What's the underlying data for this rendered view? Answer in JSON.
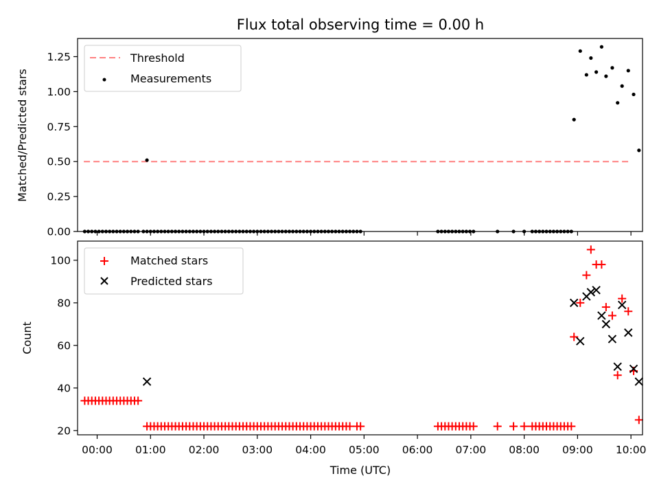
{
  "chart_data": [
    {
      "type": "scatter",
      "title": "Flux total observing time = 0.00 h",
      "xlabel": "",
      "ylabel": "Matched/Predicted stars",
      "ylim": [
        0,
        1.38
      ],
      "yticks": [
        "0.00",
        "0.25",
        "0.50",
        "0.75",
        "1.00",
        "1.25"
      ],
      "ytick_values": [
        0,
        0.25,
        0.5,
        0.75,
        1.0,
        1.25
      ],
      "legend_position": "upper-left",
      "threshold": {
        "name": "Threshold",
        "value": 0.5,
        "x_start": "23:45",
        "x_end": "09:57",
        "color": "#ff7f7f"
      },
      "measurements": {
        "name": "Measurements",
        "color": "#000000",
        "x": [
          "23:46",
          "23:50",
          "23:54",
          "23:58",
          "00:02",
          "00:06",
          "00:10",
          "00:14",
          "00:18",
          "00:22",
          "00:26",
          "00:30",
          "00:34",
          "00:38",
          "00:42",
          "00:46",
          "00:52",
          "00:56",
          "01:00",
          "01:04",
          "01:08",
          "01:12",
          "01:16",
          "01:20",
          "01:24",
          "01:28",
          "01:32",
          "01:36",
          "01:40",
          "01:44",
          "01:48",
          "01:52",
          "01:56",
          "02:00",
          "02:04",
          "02:08",
          "02:12",
          "02:16",
          "02:20",
          "02:24",
          "02:28",
          "02:32",
          "02:36",
          "02:40",
          "02:44",
          "02:48",
          "02:52",
          "02:56",
          "03:00",
          "03:04",
          "03:08",
          "03:12",
          "03:16",
          "03:20",
          "03:24",
          "03:28",
          "03:32",
          "03:36",
          "03:40",
          "03:44",
          "03:48",
          "03:52",
          "03:56",
          "04:00",
          "04:04",
          "04:08",
          "04:12",
          "04:16",
          "04:20",
          "04:24",
          "04:28",
          "04:32",
          "04:36",
          "04:40",
          "04:44",
          "04:48",
          "04:52",
          "04:56",
          "06:23",
          "06:27",
          "06:31",
          "06:35",
          "06:39",
          "06:43",
          "06:47",
          "06:51",
          "06:55",
          "06:59",
          "07:03",
          "07:30",
          "07:48",
          "08:00",
          "08:09",
          "08:13",
          "08:17",
          "08:21",
          "08:25",
          "08:29",
          "08:33",
          "08:37",
          "08:41",
          "08:45",
          "08:49",
          "08:53",
          "00:56",
          "08:56",
          "09:03",
          "09:10",
          "09:15",
          "09:21",
          "09:27",
          "09:32",
          "09:39",
          "09:45",
          "09:50",
          "09:57",
          "10:03",
          "10:09"
        ],
        "y": [
          0,
          0,
          0,
          0,
          0,
          0,
          0,
          0,
          0,
          0,
          0,
          0,
          0,
          0,
          0,
          0,
          0,
          0,
          0,
          0,
          0,
          0,
          0,
          0,
          0,
          0,
          0,
          0,
          0,
          0,
          0,
          0,
          0,
          0,
          0,
          0,
          0,
          0,
          0,
          0,
          0,
          0,
          0,
          0,
          0,
          0,
          0,
          0,
          0,
          0,
          0,
          0,
          0,
          0,
          0,
          0,
          0,
          0,
          0,
          0,
          0,
          0,
          0,
          0,
          0,
          0,
          0,
          0,
          0,
          0,
          0,
          0,
          0,
          0,
          0,
          0,
          0,
          0,
          0,
          0,
          0,
          0,
          0,
          0,
          0,
          0,
          0,
          0,
          0,
          0,
          0,
          0,
          0,
          0,
          0,
          0,
          0,
          0,
          0,
          0,
          0,
          0,
          0,
          0,
          0.51,
          0.8,
          1.29,
          1.12,
          1.24,
          1.14,
          1.32,
          1.11,
          1.17,
          0.92,
          1.04,
          1.15,
          0.98,
          0.58
        ]
      }
    },
    {
      "type": "scatter",
      "title": "",
      "xlabel": "Time (UTC)",
      "ylabel": "Count",
      "ylim": [
        18,
        109
      ],
      "yticks": [
        "20",
        "40",
        "60",
        "80",
        "100"
      ],
      "ytick_values": [
        20,
        40,
        60,
        80,
        100
      ],
      "xticks": [
        "00:00",
        "01:00",
        "02:00",
        "03:00",
        "04:00",
        "05:00",
        "06:00",
        "07:00",
        "08:00",
        "09:00",
        "10:00"
      ],
      "legend_position": "upper-left",
      "series": [
        {
          "name": "Matched stars",
          "marker": "plus",
          "color": "#ff0000",
          "x": [
            "23:46",
            "23:50",
            "23:54",
            "23:58",
            "00:02",
            "00:06",
            "00:10",
            "00:14",
            "00:18",
            "00:22",
            "00:26",
            "00:30",
            "00:34",
            "00:38",
            "00:42",
            "00:46",
            "00:56",
            "01:00",
            "01:04",
            "01:08",
            "01:12",
            "01:16",
            "01:20",
            "01:24",
            "01:28",
            "01:32",
            "01:36",
            "01:40",
            "01:44",
            "01:48",
            "01:52",
            "01:56",
            "02:00",
            "02:04",
            "02:08",
            "02:12",
            "02:16",
            "02:20",
            "02:24",
            "02:28",
            "02:32",
            "02:36",
            "02:40",
            "02:44",
            "02:48",
            "02:52",
            "02:56",
            "03:00",
            "03:04",
            "03:08",
            "03:12",
            "03:16",
            "03:20",
            "03:24",
            "03:28",
            "03:32",
            "03:36",
            "03:40",
            "03:44",
            "03:48",
            "03:52",
            "03:56",
            "04:00",
            "04:04",
            "04:08",
            "04:12",
            "04:16",
            "04:20",
            "04:24",
            "04:28",
            "04:32",
            "04:36",
            "04:40",
            "04:44",
            "04:52",
            "04:56",
            "06:23",
            "06:27",
            "06:31",
            "06:35",
            "06:39",
            "06:43",
            "06:47",
            "06:51",
            "06:55",
            "06:59",
            "07:03",
            "07:30",
            "07:48",
            "08:00",
            "08:09",
            "08:13",
            "08:17",
            "08:21",
            "08:25",
            "08:29",
            "08:33",
            "08:37",
            "08:41",
            "08:45",
            "08:49",
            "08:53",
            "08:56",
            "09:03",
            "09:10",
            "09:15",
            "09:21",
            "09:27",
            "09:32",
            "09:39",
            "09:45",
            "09:50",
            "09:57",
            "10:03",
            "10:09"
          ],
          "y": [
            34,
            34,
            34,
            34,
            34,
            34,
            34,
            34,
            34,
            34,
            34,
            34,
            34,
            34,
            34,
            34,
            22,
            22,
            22,
            22,
            22,
            22,
            22,
            22,
            22,
            22,
            22,
            22,
            22,
            22,
            22,
            22,
            22,
            22,
            22,
            22,
            22,
            22,
            22,
            22,
            22,
            22,
            22,
            22,
            22,
            22,
            22,
            22,
            22,
            22,
            22,
            22,
            22,
            22,
            22,
            22,
            22,
            22,
            22,
            22,
            22,
            22,
            22,
            22,
            22,
            22,
            22,
            22,
            22,
            22,
            22,
            22,
            22,
            22,
            22,
            22,
            22,
            22,
            22,
            22,
            22,
            22,
            22,
            22,
            22,
            22,
            22,
            22,
            22,
            22,
            22,
            22,
            22,
            22,
            22,
            22,
            22,
            22,
            22,
            22,
            22,
            22,
            64,
            80,
            93,
            105,
            98,
            98,
            78,
            74,
            46,
            82,
            76,
            48,
            25
          ]
        },
        {
          "name": "Predicted stars",
          "marker": "x",
          "color": "#000000",
          "x": [
            "00:56",
            "08:56",
            "09:03",
            "09:10",
            "09:15",
            "09:21",
            "09:27",
            "09:32",
            "09:39",
            "09:45",
            "09:50",
            "09:57",
            "10:03",
            "10:09"
          ],
          "y": [
            43,
            80,
            62,
            83,
            85,
            86,
            74,
            70,
            63,
            50,
            79,
            66,
            49,
            43
          ]
        }
      ]
    }
  ]
}
